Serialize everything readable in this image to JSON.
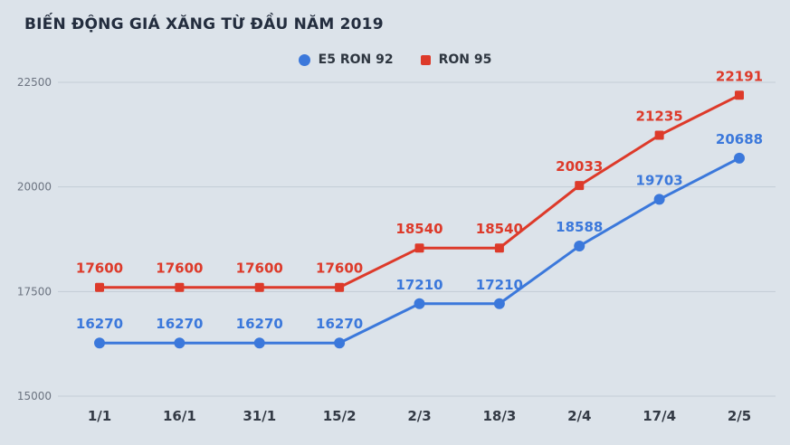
{
  "title": "BIẾN ĐỘNG GIÁ XĂNG TỪ ĐẦU NĂM 2019",
  "chart_data": {
    "type": "line",
    "categories": [
      "1/1",
      "16/1",
      "31/1",
      "15/2",
      "2/3",
      "18/3",
      "2/4",
      "17/4",
      "2/5"
    ],
    "series": [
      {
        "name": "E5 RON 92",
        "marker": "circle",
        "color": "#3b78db",
        "values": [
          16270,
          16270,
          16270,
          16270,
          17210,
          17210,
          18588,
          19703,
          20688
        ]
      },
      {
        "name": "RON 95",
        "marker": "square",
        "color": "#dd3a2a",
        "values": [
          17600,
          17600,
          17600,
          17600,
          18540,
          18540,
          20033,
          21235,
          22191
        ]
      }
    ],
    "ylim": [
      15000,
      22500
    ],
    "yticks": [
      15000,
      17500,
      20000,
      22500
    ],
    "grid": true,
    "legend_position": "top",
    "xlabel": "",
    "ylabel": ""
  },
  "colors": {
    "background": "#dce3ea",
    "grid": "#c3ccd6",
    "title": "#232d3e",
    "y_tick_label": "#6b7380",
    "x_tick_label": "#333a45",
    "legend_text": "#2e3640"
  }
}
